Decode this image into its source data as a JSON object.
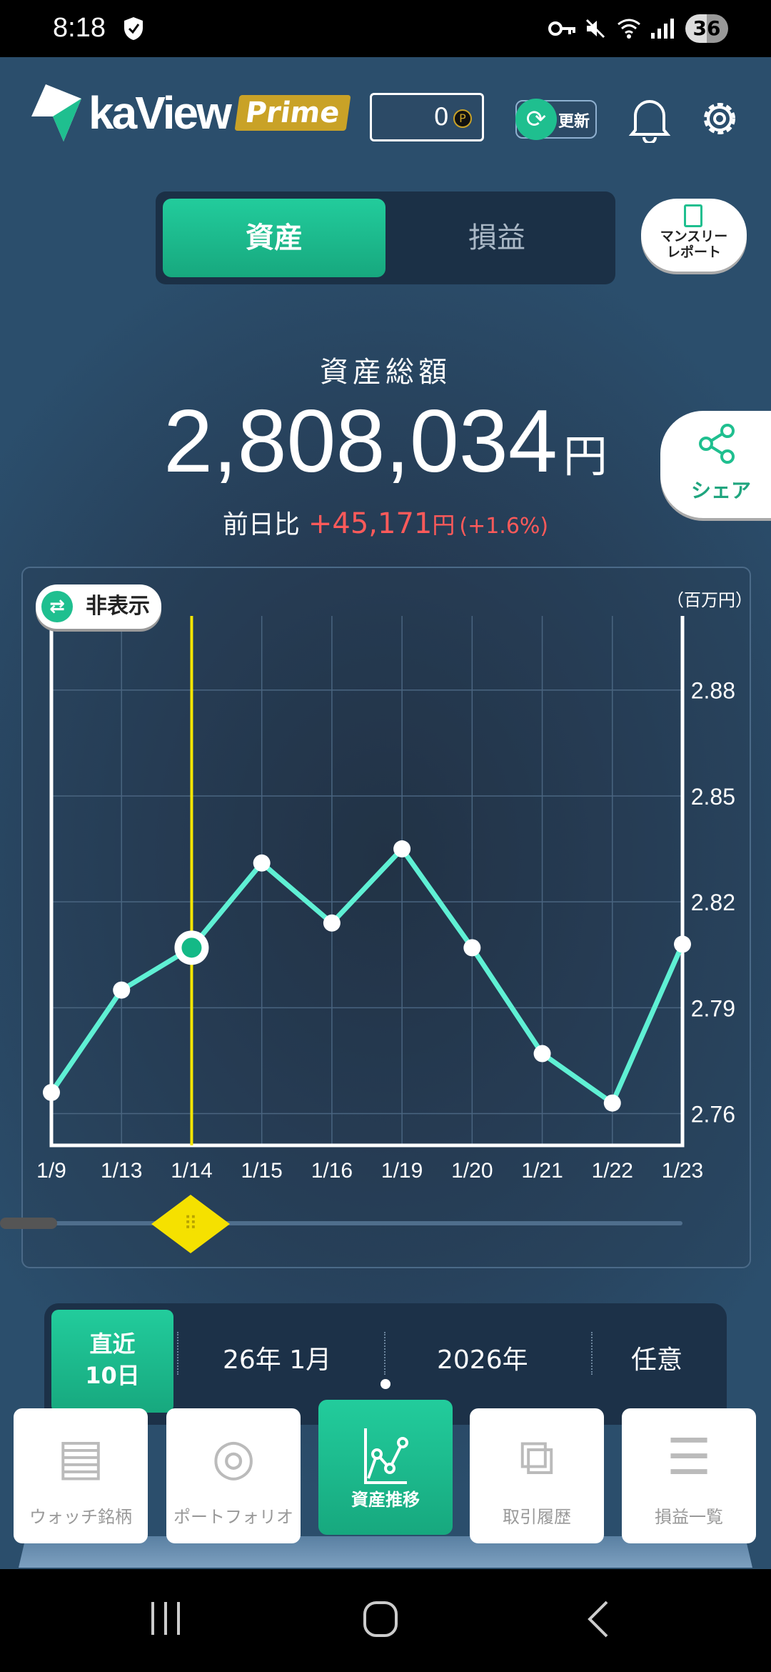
{
  "status_bar": {
    "time": "8:18",
    "battery": "36"
  },
  "header": {
    "logo_text": "kaView",
    "logo_badge": "Prime",
    "points": "0",
    "points_icon": "P",
    "refresh_label": "更新"
  },
  "segment": {
    "active": "資産",
    "inactive": "損益"
  },
  "monthly_report": {
    "label_line1": "マンスリー",
    "label_line2": "レポート"
  },
  "summary": {
    "label": "資産総額",
    "amount": "2,808,034",
    "unit": "円",
    "diff_label": "前日比",
    "diff_value": "+45,171",
    "diff_unit": "円",
    "diff_percent": "(+1.6%)"
  },
  "share": {
    "label": "シェア"
  },
  "chart_controls": {
    "hide_label": "非表示"
  },
  "chart_data": {
    "type": "line",
    "unit_label": "（百万円）",
    "categories": [
      "1/9",
      "1/13",
      "1/14",
      "1/15",
      "1/16",
      "1/19",
      "1/20",
      "1/21",
      "1/22",
      "1/23"
    ],
    "values": [
      2.766,
      2.795,
      2.807,
      2.831,
      2.814,
      2.835,
      2.807,
      2.777,
      2.763,
      2.808
    ],
    "yticks": [
      2.76,
      2.79,
      2.82,
      2.85,
      2.88
    ],
    "ylim": [
      2.751,
      2.901
    ],
    "y_axis_position": "right",
    "grid": true,
    "selected_index": 2,
    "colors": {
      "line": "#5ff0d4",
      "selected": "#14b986",
      "cursor": "#f5e600"
    }
  },
  "period": {
    "active_line1": "直近",
    "active_line2": "10日",
    "options": [
      "26年 1月",
      "2026年",
      "任意"
    ]
  },
  "tabs": [
    {
      "label": "ウォッチ銘柄",
      "icon": "watchlist-icon"
    },
    {
      "label": "ポートフォリオ",
      "icon": "portfolio-icon"
    },
    {
      "label": "資産推移",
      "icon": "asset-trend-icon",
      "active": true
    },
    {
      "label": "取引履歴",
      "icon": "history-icon"
    },
    {
      "label": "損益一覧",
      "icon": "pl-list-icon"
    }
  ]
}
